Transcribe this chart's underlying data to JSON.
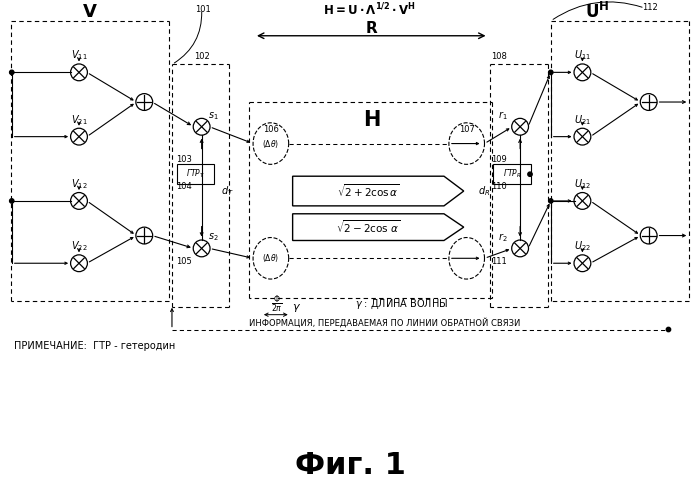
{
  "bg_color": "#ffffff",
  "line_color": "#000000",
  "title": "Фиг. 1",
  "label_feedback": "ИНФОРМАЦИЯ, ПЕРЕДАВАЕМАЯ ПО ЛИНИИ ОБРАТНОЙ СВЯЗИ",
  "label_note": "ПРИМЕЧАНИЕ:  ГТР - гетеродин"
}
